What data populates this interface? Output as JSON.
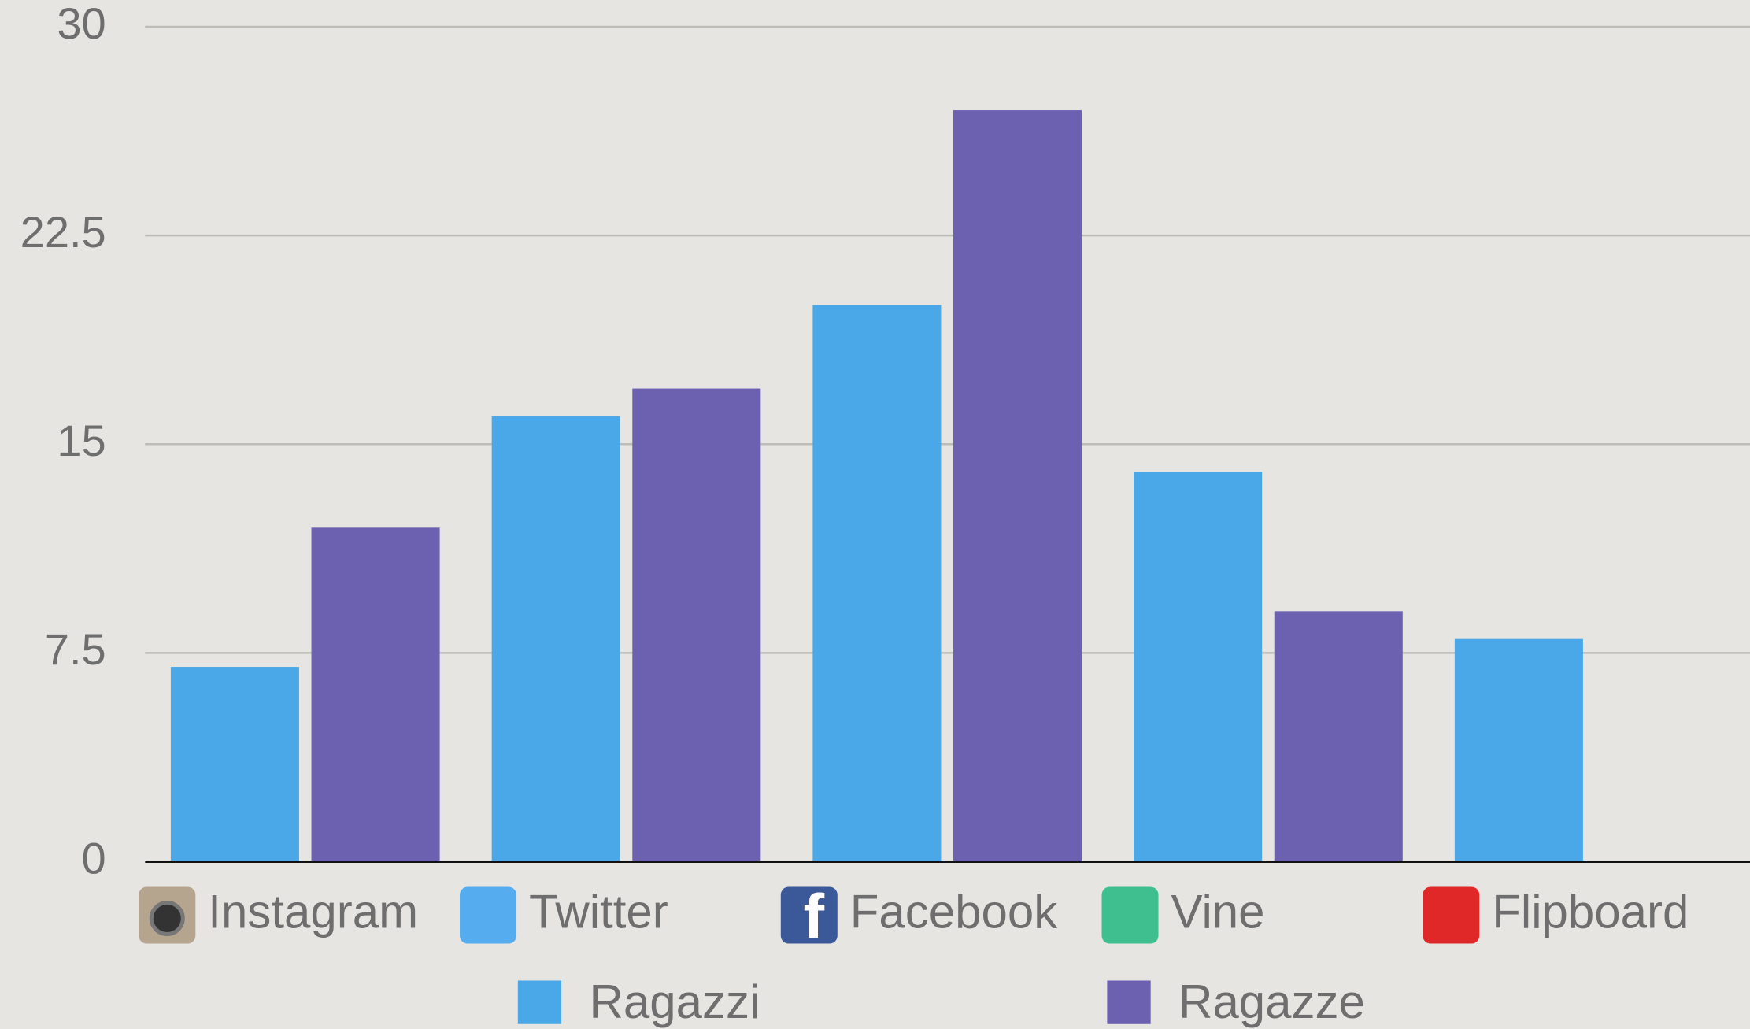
{
  "chart_data": {
    "type": "bar",
    "categories": [
      "Instagram",
      "Twitter",
      "Facebook",
      "Vine",
      "Flipboard"
    ],
    "series": [
      {
        "name": "Ragazzi",
        "color": "#4aa8e8",
        "values": [
          7,
          16,
          20,
          14,
          8
        ]
      },
      {
        "name": "Ragazze",
        "color": "#6c60b0",
        "values": [
          12,
          17,
          27,
          9,
          null
        ]
      }
    ],
    "ylim": [
      0,
      30
    ],
    "yticks": [
      0,
      7.5,
      15,
      22.5,
      30
    ],
    "grid": true,
    "legend": "bottom"
  }
}
